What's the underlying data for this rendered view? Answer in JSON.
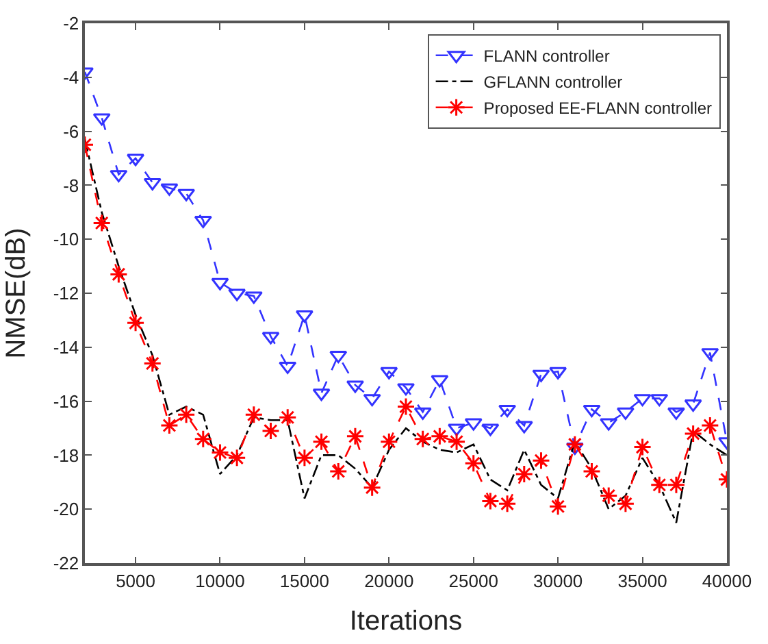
{
  "chart_data": {
    "type": "line",
    "xlabel": "Iterations",
    "ylabel": "NMSE(dB)",
    "x": [
      2000,
      3000,
      4000,
      5000,
      6000,
      7000,
      8000,
      9000,
      10000,
      11000,
      12000,
      13000,
      14000,
      15000,
      16000,
      17000,
      18000,
      19000,
      20000,
      21000,
      22000,
      23000,
      24000,
      25000,
      26000,
      27000,
      28000,
      29000,
      30000,
      31000,
      32000,
      33000,
      34000,
      35000,
      36000,
      37000,
      38000,
      39000,
      40000
    ],
    "series": [
      {
        "name": "FLANN controller",
        "color": "#3333ff",
        "marker": "triangle",
        "line_style": "dashed",
        "values": [
          -3.8,
          -5.5,
          -7.6,
          -7.0,
          -7.9,
          -8.1,
          -8.3,
          -9.3,
          -11.6,
          -12.0,
          -12.1,
          -13.6,
          -14.7,
          -12.8,
          -15.7,
          -14.3,
          -15.4,
          -15.9,
          -14.9,
          -15.5,
          -16.4,
          -15.2,
          -17.0,
          -16.8,
          -17.0,
          -16.3,
          -16.9,
          -15.0,
          -14.9,
          -17.7,
          -16.3,
          -16.8,
          -16.4,
          -15.9,
          -15.9,
          -16.4,
          -16.1,
          -14.2,
          -17.5
        ]
      },
      {
        "name": "GFLANN controller",
        "color": "#000000",
        "marker": "none",
        "line_style": "dashdot",
        "values": [
          -6.3,
          -9.0,
          -11.0,
          -12.8,
          -14.3,
          -16.5,
          -16.2,
          -16.5,
          -18.7,
          -18.0,
          -16.6,
          -16.7,
          -16.7,
          -19.6,
          -18.0,
          -18.0,
          -18.5,
          -19.2,
          -17.8,
          -17.0,
          -17.5,
          -17.8,
          -17.9,
          -17.6,
          -18.9,
          -19.3,
          -17.8,
          -19.1,
          -19.6,
          -17.5,
          -18.5,
          -20.0,
          -19.5,
          -18.1,
          -19.1,
          -20.5,
          -17.1,
          -17.6,
          -18.0
        ]
      },
      {
        "name": "Proposed EE-FLANN controller",
        "color": "#ff0000",
        "marker": "cross",
        "line_style": "dashed",
        "values": [
          -6.5,
          -9.4,
          -11.3,
          -13.1,
          -14.6,
          -16.9,
          -16.5,
          -17.4,
          -17.9,
          -18.1,
          -16.5,
          -17.1,
          -16.6,
          -18.1,
          -17.5,
          -18.6,
          -17.3,
          -19.2,
          -17.5,
          -16.2,
          -17.4,
          -17.3,
          -17.5,
          -18.3,
          -19.7,
          -19.8,
          -18.7,
          -18.2,
          -19.9,
          -17.6,
          -18.6,
          -19.5,
          -19.8,
          -17.7,
          -19.1,
          -19.1,
          -17.2,
          -16.9,
          -18.9
        ]
      }
    ],
    "xlim": [
      2000,
      40000
    ],
    "xticks": [
      5000,
      10000,
      15000,
      20000,
      25000,
      30000,
      35000,
      40000
    ],
    "ylim": [
      -22,
      -2
    ],
    "yticks": [
      -22,
      -20,
      -18,
      -16,
      -14,
      -12,
      -10,
      -8,
      -6,
      -4,
      -2
    ],
    "legend": "top right"
  }
}
